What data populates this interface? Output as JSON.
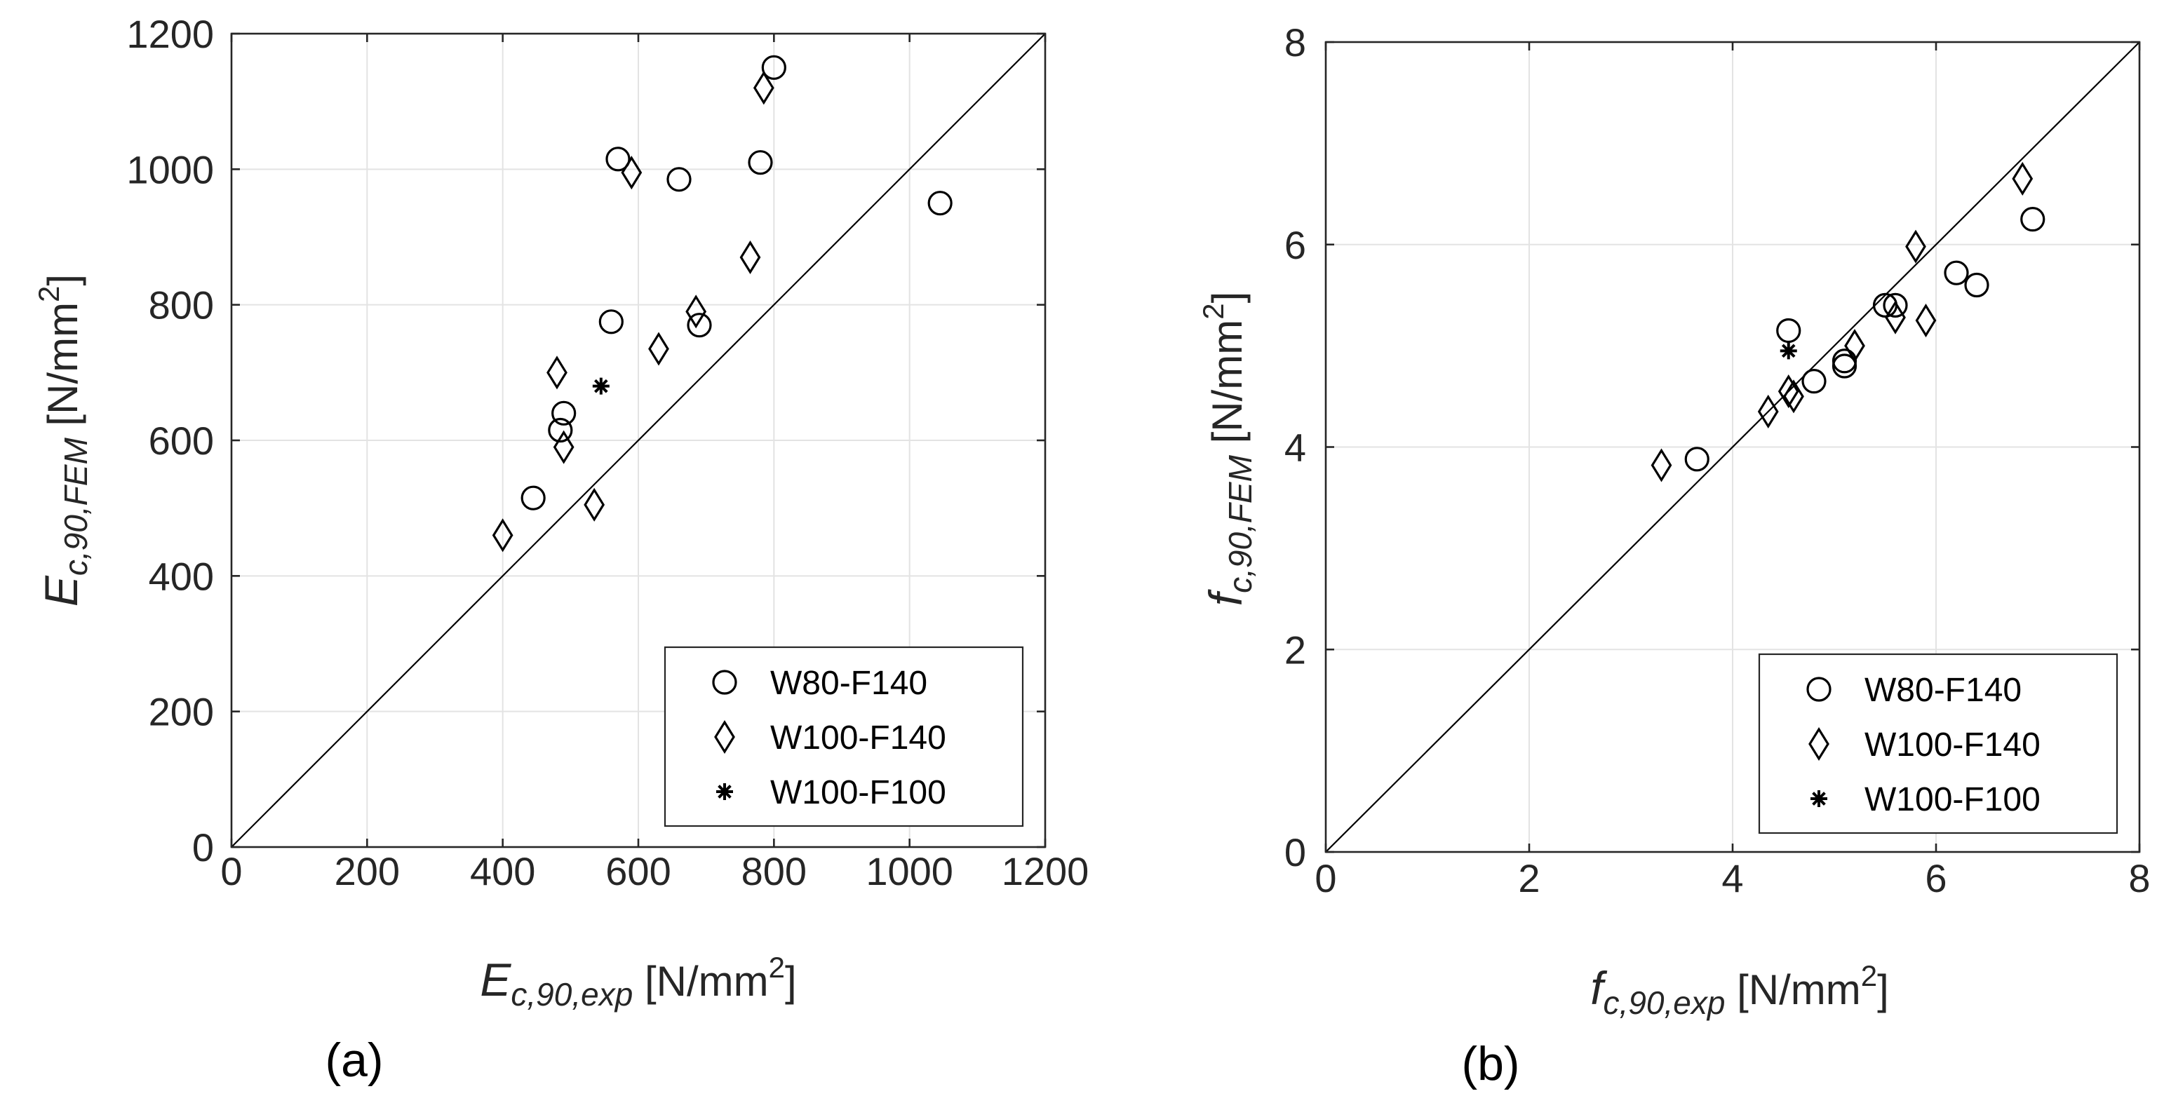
{
  "chart_data": [
    {
      "type": "scatter",
      "panel_label": "(a)",
      "xlabel": {
        "sym": "E",
        "sub": "c,90,exp",
        "unit": "[N/mm",
        "sup": "2",
        "close": "]"
      },
      "ylabel": {
        "sym": "E",
        "sub": "c,90,FEM",
        "unit": "[N/mm",
        "sup": "2",
        "close": "]"
      },
      "xlim": [
        0,
        1200
      ],
      "ylim": [
        0,
        1200
      ],
      "xticks": [
        0,
        200,
        400,
        600,
        800,
        1000,
        1200
      ],
      "yticks": [
        0,
        200,
        400,
        600,
        800,
        1000,
        1200
      ],
      "grid": true,
      "reference_line": "y = x",
      "legend_position": "bottom-right",
      "series": [
        {
          "name": "W80-F140",
          "marker": "circle",
          "x": [
            445,
            485,
            490,
            560,
            570,
            660,
            690,
            780,
            800,
            1045
          ],
          "y": [
            515,
            615,
            640,
            775,
            1015,
            985,
            770,
            1010,
            1150,
            950
          ]
        },
        {
          "name": "W100-F140",
          "marker": "diamond",
          "x": [
            400,
            480,
            490,
            535,
            590,
            630,
            685,
            765,
            785
          ],
          "y": [
            460,
            700,
            590,
            505,
            995,
            735,
            790,
            870,
            1120
          ]
        },
        {
          "name": "W100-F100",
          "marker": "star",
          "x": [
            545
          ],
          "y": [
            680
          ]
        }
      ]
    },
    {
      "type": "scatter",
      "panel_label": "(b)",
      "xlabel": {
        "sym": "f",
        "sub": "c,90,exp",
        "unit": "[N/mm",
        "sup": "2",
        "close": "]"
      },
      "ylabel": {
        "sym": "f",
        "sub": "c,90,FEM",
        "unit": "[N/mm",
        "sup": "2",
        "close": "]"
      },
      "xlim": [
        0,
        8
      ],
      "ylim": [
        0,
        8
      ],
      "xticks": [
        0,
        2,
        4,
        6,
        8
      ],
      "yticks": [
        0,
        2,
        4,
        6,
        8
      ],
      "grid": true,
      "reference_line": "y = x",
      "legend_position": "bottom-right",
      "series": [
        {
          "name": "W80-F140",
          "marker": "circle",
          "x": [
            3.65,
            4.55,
            4.8,
            5.1,
            5.1,
            5.5,
            5.6,
            6.2,
            6.4,
            6.95
          ],
          "y": [
            3.88,
            5.15,
            4.65,
            4.85,
            4.8,
            5.4,
            5.4,
            5.72,
            5.6,
            6.25
          ]
        },
        {
          "name": "W100-F140",
          "marker": "diamond",
          "x": [
            3.3,
            4.35,
            4.55,
            4.6,
            5.2,
            5.6,
            5.8,
            5.9,
            6.85
          ],
          "y": [
            3.82,
            4.35,
            4.55,
            4.5,
            5.0,
            5.28,
            5.98,
            5.25,
            6.65
          ]
        },
        {
          "name": "W100-F100",
          "marker": "star",
          "x": [
            4.55
          ],
          "y": [
            4.95
          ]
        }
      ]
    }
  ]
}
